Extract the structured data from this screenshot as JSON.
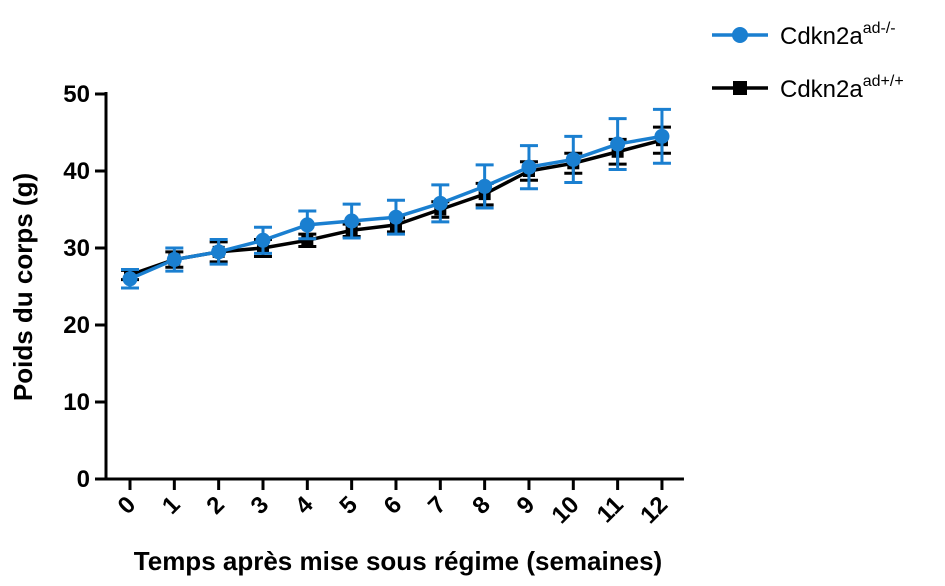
{
  "chart_data": {
    "type": "line",
    "x": [
      0,
      1,
      2,
      3,
      4,
      5,
      6,
      7,
      8,
      9,
      10,
      11,
      12
    ],
    "xticklabels": [
      "0",
      "1",
      "2",
      "3",
      "4",
      "5",
      "6",
      "7",
      "8",
      "9",
      "10",
      "11",
      "12"
    ],
    "xlabel": "Temps après mise sous régime (semaines)",
    "ylabel": "Poids du corps (g)",
    "ylim": [
      0,
      50
    ],
    "yticks": [
      0,
      10,
      20,
      30,
      40,
      50
    ],
    "yticklabels": [
      "0",
      "10",
      "20",
      "30",
      "40",
      "50"
    ],
    "grid": false,
    "legend_position": "top-right",
    "series": [
      {
        "name_base": "Cdkn2a",
        "name_sup": "ad-/-",
        "color": "#1a7fd0",
        "marker": "circle",
        "values": [
          26.0,
          28.5,
          29.5,
          31.0,
          33.0,
          33.5,
          34.0,
          35.8,
          38.0,
          40.5,
          41.5,
          43.5,
          44.5
        ],
        "errors": [
          1.2,
          1.5,
          1.6,
          1.7,
          1.8,
          2.2,
          2.2,
          2.4,
          2.8,
          2.8,
          3.0,
          3.3,
          3.5
        ]
      },
      {
        "name_base": "Cdkn2a",
        "name_sup": "ad+/+",
        "color": "#000000",
        "marker": "square",
        "values": [
          26.5,
          28.5,
          29.5,
          30.0,
          31.0,
          32.3,
          33.0,
          35.0,
          37.0,
          40.0,
          41.0,
          42.5,
          44.0
        ],
        "errors": [
          0.6,
          1.0,
          1.3,
          1.1,
          0.8,
          0.8,
          0.9,
          1.0,
          1.4,
          1.2,
          1.3,
          1.6,
          1.7
        ]
      }
    ]
  }
}
